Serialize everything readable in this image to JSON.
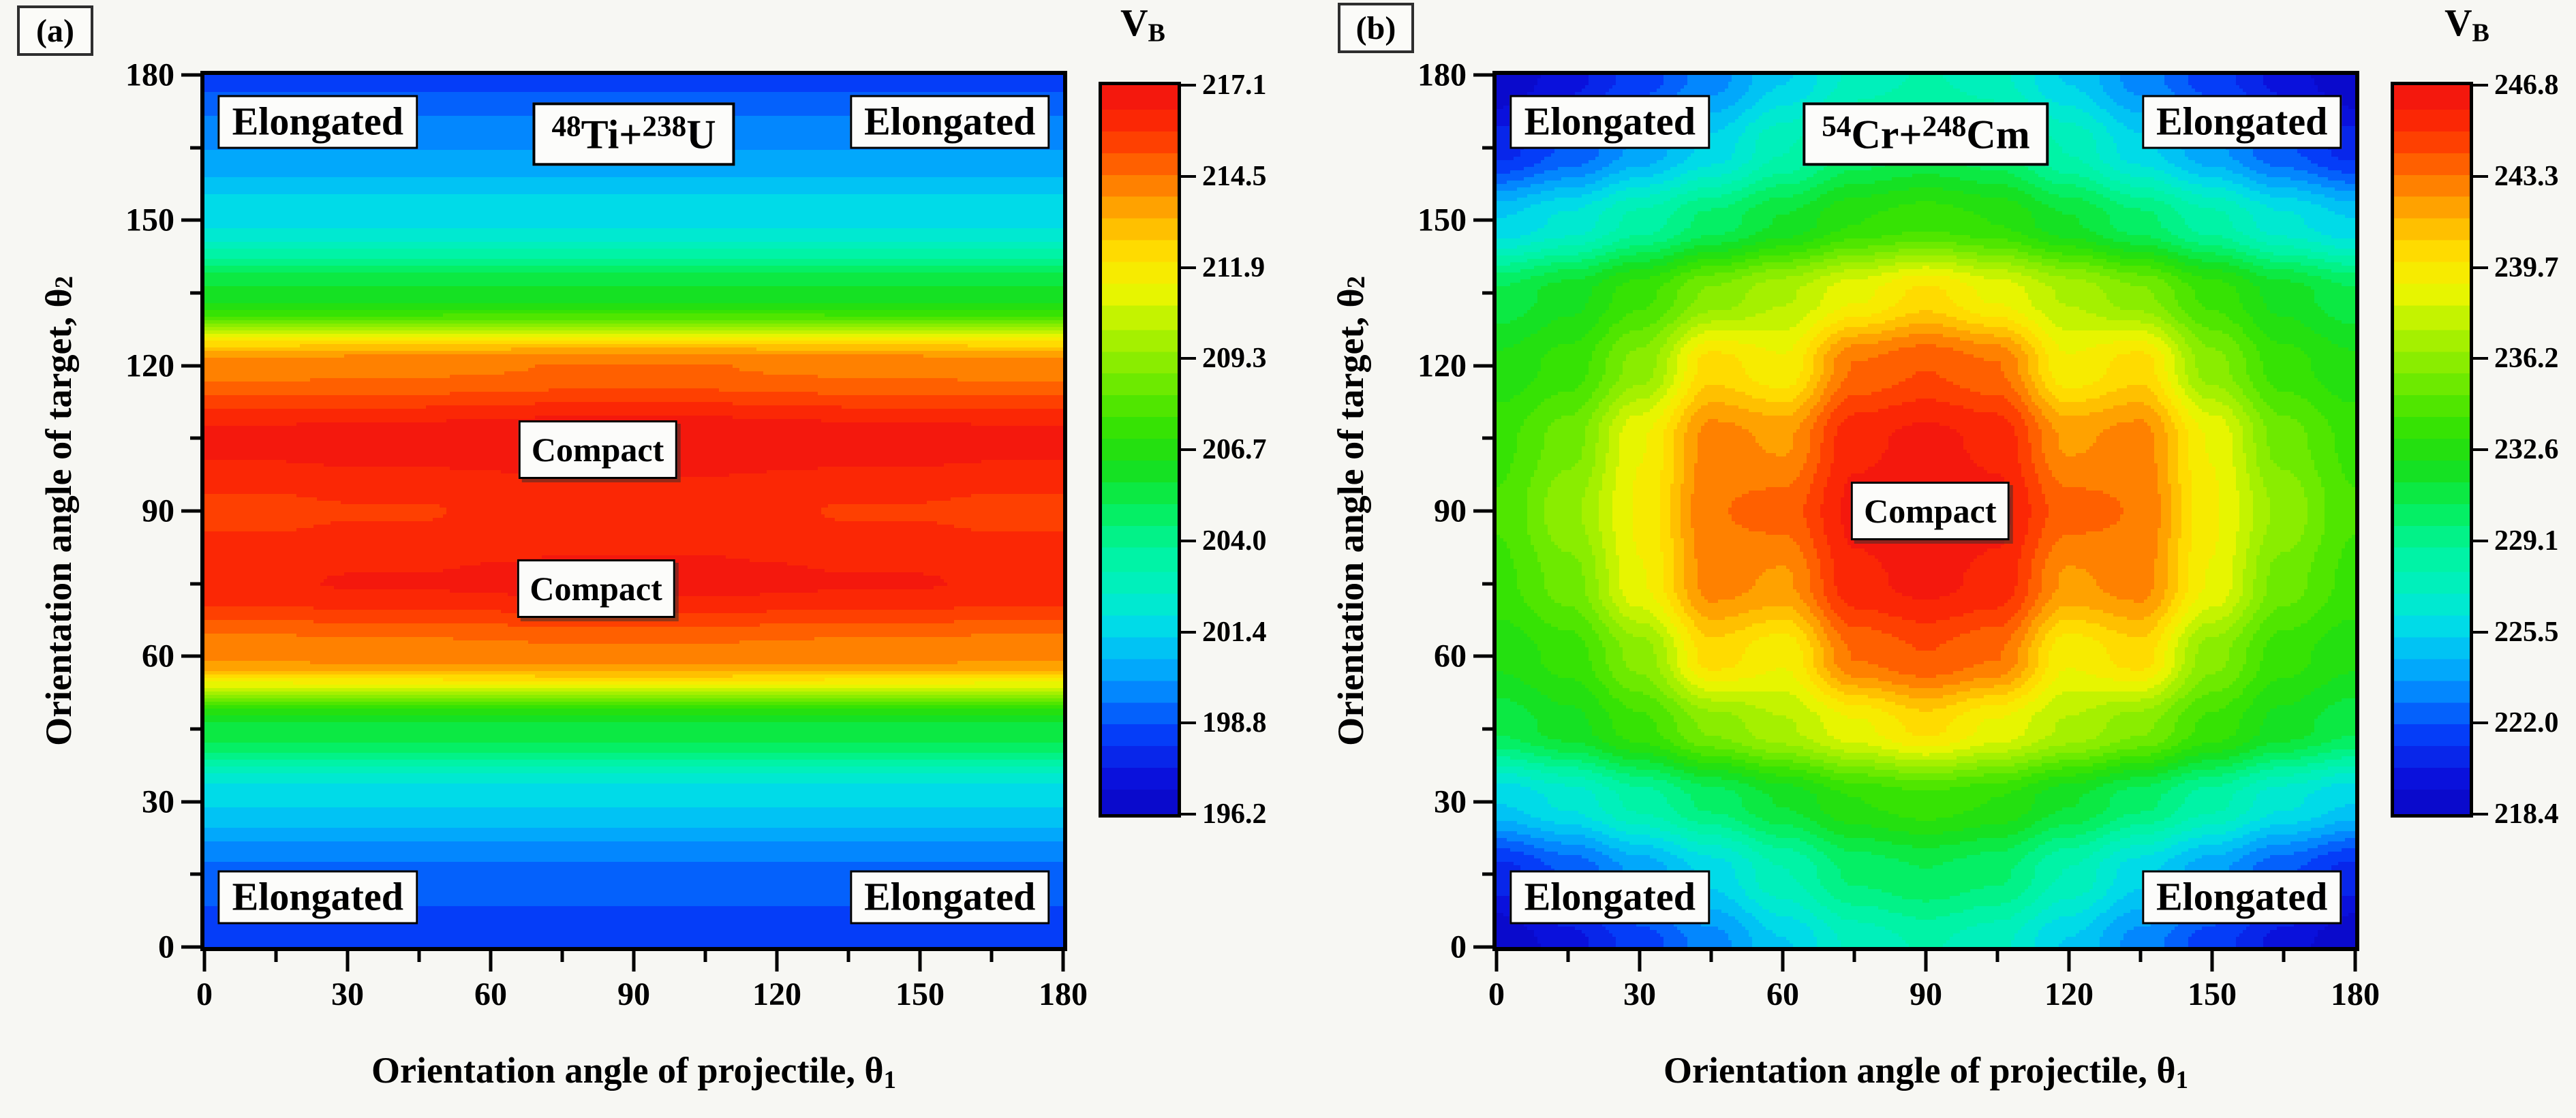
{
  "figure_background": "#f7f7f3",
  "palette": [
    [
      0.0,
      "#0A06C4"
    ],
    [
      0.05,
      "#0A12DE"
    ],
    [
      0.11,
      "#0540FA"
    ],
    [
      0.18,
      "#0298FF"
    ],
    [
      0.25,
      "#00D8EE"
    ],
    [
      0.3,
      "#00EEC8"
    ],
    [
      0.36,
      "#00F49E"
    ],
    [
      0.42,
      "#06EE58"
    ],
    [
      0.48,
      "#18DE18"
    ],
    [
      0.54,
      "#3CE400"
    ],
    [
      0.61,
      "#80EC00"
    ],
    [
      0.67,
      "#B6F200"
    ],
    [
      0.72,
      "#F0F600"
    ],
    [
      0.77,
      "#FFDE00"
    ],
    [
      0.82,
      "#FFB000"
    ],
    [
      0.87,
      "#FF7A00"
    ],
    [
      0.92,
      "#FF4400"
    ],
    [
      0.96,
      "#FA2206"
    ],
    [
      1.0,
      "#F01212"
    ]
  ],
  "quantize_levels": 33,
  "panels": [
    {
      "corner_label": "(a)",
      "reaction": {
        "parts": [
          {
            "sup": "48"
          },
          {
            "txt": "Ti+"
          },
          {
            "sup": "238"
          },
          {
            "txt": "U"
          }
        ]
      },
      "xlabel": {
        "text": "Orientation angle of projectile, θ",
        "sub": "1"
      },
      "ylabel": {
        "text": "Orientation angle of target, θ",
        "sub": "2"
      },
      "x_ticks": [
        0,
        30,
        60,
        90,
        120,
        150,
        180
      ],
      "y_ticks": [
        0,
        30,
        60,
        90,
        120,
        150,
        180
      ],
      "minor_ticks": [
        15,
        45,
        75,
        105,
        135,
        165
      ],
      "colorbar": {
        "title": "V",
        "title_sub": "B",
        "tick_labels": [
          "217.1",
          "214.5",
          "211.9",
          "209.3",
          "206.7",
          "204.0",
          "201.4",
          "198.8",
          "196.2"
        ]
      },
      "annotations": [
        {
          "kind": "elongated",
          "text": "Elongated",
          "fx": 0.132,
          "fy": 0.054
        },
        {
          "kind": "elongated",
          "text": "Elongated",
          "fx": 0.868,
          "fy": 0.054
        },
        {
          "kind": "elongated",
          "text": "Elongated",
          "fx": 0.132,
          "fy": 0.943
        },
        {
          "kind": "elongated",
          "text": "Elongated",
          "fx": 0.868,
          "fy": 0.943
        },
        {
          "kind": "compact",
          "text": "Compact",
          "fx": 0.458,
          "fy": 0.43
        },
        {
          "kind": "compact",
          "text": "Compact",
          "fx": 0.456,
          "fy": 0.589
        },
        {
          "kind": "reaction",
          "fx": 0.5,
          "fy": 0.068
        }
      ]
    },
    {
      "corner_label": "(b)",
      "reaction": {
        "parts": [
          {
            "sup": "54"
          },
          {
            "txt": "Cr+"
          },
          {
            "sup": "248"
          },
          {
            "txt": "Cm"
          }
        ]
      },
      "xlabel": {
        "text": "Orientation angle of projectile, θ",
        "sub": "1"
      },
      "ylabel": {
        "text": "Orientation angle of target, θ",
        "sub": "2"
      },
      "x_ticks": [
        0,
        30,
        60,
        90,
        120,
        150,
        180
      ],
      "y_ticks": [
        0,
        30,
        60,
        90,
        120,
        150,
        180
      ],
      "minor_ticks": [
        15,
        45,
        75,
        105,
        135,
        165
      ],
      "colorbar": {
        "title": "V",
        "title_sub": "B",
        "tick_labels": [
          "246.8",
          "243.3",
          "239.7",
          "236.2",
          "232.6",
          "229.1",
          "225.5",
          "222.0",
          "218.4"
        ]
      },
      "annotations": [
        {
          "kind": "elongated",
          "text": "Elongated",
          "fx": 0.132,
          "fy": 0.054
        },
        {
          "kind": "elongated",
          "text": "Elongated",
          "fx": 0.868,
          "fy": 0.054
        },
        {
          "kind": "elongated",
          "text": "Elongated",
          "fx": 0.132,
          "fy": 0.943
        },
        {
          "kind": "elongated",
          "text": "Elongated",
          "fx": 0.868,
          "fy": 0.943
        },
        {
          "kind": "compact",
          "text": "Compact",
          "fx": 0.505,
          "fy": 0.5
        },
        {
          "kind": "reaction",
          "fx": 0.5,
          "fy": 0.068
        }
      ]
    }
  ],
  "chart_data": [
    {
      "type": "heatmap",
      "title": "48Ti+238U",
      "xlabel": "Orientation angle of projectile, θ1",
      "ylabel": "Orientation angle of target, θ2",
      "zlabel": "V_B",
      "xlim": [
        0,
        180
      ],
      "ylim": [
        0,
        180
      ],
      "zmin": 196.2,
      "zmax": 217.1,
      "colorbar_ticks": [
        217.1,
        214.5,
        211.9,
        209.3,
        206.7,
        204.0,
        201.4,
        198.8,
        196.2
      ],
      "legend_position": "right-colorbar",
      "grid": "off",
      "x": [
        0,
        15,
        30,
        45,
        60,
        75,
        90,
        105,
        120,
        135,
        150,
        165,
        180
      ],
      "y": [
        0,
        15,
        30,
        45,
        60,
        75,
        90,
        105,
        120,
        135,
        150,
        165,
        180
      ],
      "values": [
        [
          198.2,
          198.2,
          198.2,
          198.2,
          198.2,
          198.2,
          198.2,
          198.2,
          198.2,
          198.2,
          198.2,
          198.2,
          198.2
        ],
        [
          199.2,
          199.2,
          199.2,
          199.2,
          199.2,
          199.2,
          199.2,
          199.2,
          199.2,
          199.2,
          199.2,
          199.2,
          199.2
        ],
        [
          201.3,
          201.3,
          201.3,
          201.3,
          201.3,
          201.3,
          201.3,
          201.3,
          201.3,
          201.3,
          201.3,
          201.3,
          201.3
        ],
        [
          205.6,
          205.6,
          205.6,
          205.6,
          205.6,
          205.6,
          205.6,
          205.6,
          205.6,
          205.6,
          205.6,
          205.6,
          205.6
        ],
        [
          214.1,
          214.1,
          214.2,
          214.2,
          214.3,
          214.4,
          214.4,
          214.4,
          214.3,
          214.2,
          214.2,
          214.1,
          214.1
        ],
        [
          216.4,
          216.4,
          216.5,
          216.5,
          216.6,
          216.7,
          216.7,
          216.7,
          216.6,
          216.5,
          216.5,
          216.4,
          216.4
        ],
        [
          215.7,
          215.7,
          215.8,
          215.8,
          215.9,
          216.0,
          216.0,
          216.0,
          215.9,
          215.8,
          215.8,
          215.7,
          215.7
        ],
        [
          216.7,
          216.7,
          216.8,
          216.8,
          216.9,
          217.0,
          217.1,
          217.0,
          216.9,
          216.8,
          216.8,
          216.7,
          216.7
        ],
        [
          214.3,
          214.3,
          214.4,
          214.4,
          214.5,
          214.6,
          214.6,
          214.6,
          214.5,
          214.4,
          214.4,
          214.3,
          214.3
        ],
        [
          205.8,
          205.8,
          205.8,
          205.8,
          205.8,
          205.8,
          205.8,
          205.8,
          205.8,
          205.8,
          205.8,
          205.8,
          205.8
        ],
        [
          201.8,
          201.8,
          201.8,
          201.8,
          201.8,
          201.8,
          201.8,
          201.8,
          201.8,
          201.8,
          201.8,
          201.8,
          201.8
        ],
        [
          200.0,
          200.0,
          200.0,
          200.0,
          200.0,
          200.0,
          200.0,
          200.0,
          200.0,
          200.0,
          200.0,
          200.0,
          200.0
        ],
        [
          198.6,
          198.6,
          198.6,
          198.6,
          198.6,
          198.6,
          198.6,
          198.6,
          198.6,
          198.6,
          198.6,
          198.6,
          198.6
        ]
      ]
    },
    {
      "type": "heatmap",
      "title": "54Cr+248Cm",
      "xlabel": "Orientation angle of projectile, θ1",
      "ylabel": "Orientation angle of target, θ2",
      "zlabel": "V_B",
      "xlim": [
        0,
        180
      ],
      "ylim": [
        0,
        180
      ],
      "zmin": 218.4,
      "zmax": 246.8,
      "colorbar_ticks": [
        246.8,
        243.3,
        239.7,
        236.2,
        232.6,
        229.1,
        225.5,
        222.0,
        218.4
      ],
      "legend_position": "right-colorbar",
      "grid": "off",
      "x": [
        0,
        15,
        30,
        45,
        60,
        75,
        90,
        105,
        120,
        135,
        150,
        165,
        180
      ],
      "y": [
        0,
        15,
        30,
        45,
        60,
        75,
        90,
        105,
        120,
        135,
        150,
        165,
        180
      ],
      "values": [
        [
          218.4,
          219.8,
          221.4,
          223.2,
          225.2,
          227.2,
          228.0,
          227.2,
          225.2,
          223.2,
          221.4,
          219.8,
          218.4
        ],
        [
          220.6,
          222.0,
          223.8,
          225.6,
          227.8,
          229.8,
          230.4,
          229.8,
          227.8,
          225.6,
          223.8,
          222.0,
          220.6
        ],
        [
          225.3,
          226.4,
          228.2,
          229.9,
          231.4,
          233.0,
          233.6,
          233.0,
          231.4,
          229.9,
          228.2,
          226.4,
          225.3
        ],
        [
          230.6,
          231.8,
          233.6,
          235.8,
          237.2,
          238.8,
          240.2,
          238.8,
          237.2,
          235.8,
          233.6,
          231.8,
          230.6
        ],
        [
          232.4,
          233.4,
          236.0,
          240.4,
          239.2,
          243.4,
          244.2,
          243.4,
          239.2,
          240.4,
          236.0,
          233.4,
          232.4
        ],
        [
          233.6,
          235.2,
          239.0,
          242.9,
          242.3,
          245.7,
          246.2,
          245.7,
          242.3,
          242.9,
          239.0,
          235.2,
          233.6
        ],
        [
          234.0,
          236.3,
          239.2,
          243.3,
          243.7,
          246.2,
          246.8,
          246.2,
          243.7,
          243.3,
          239.2,
          236.3,
          234.0
        ],
        [
          233.6,
          235.2,
          239.0,
          242.9,
          242.3,
          245.7,
          246.2,
          245.7,
          242.3,
          242.9,
          239.0,
          235.2,
          233.6
        ],
        [
          232.4,
          233.4,
          236.0,
          240.4,
          239.2,
          243.4,
          244.2,
          243.4,
          239.2,
          240.4,
          236.0,
          233.4,
          232.4
        ],
        [
          230.6,
          231.8,
          233.6,
          235.8,
          237.2,
          238.8,
          240.2,
          238.8,
          237.2,
          235.8,
          233.6,
          231.8,
          230.6
        ],
        [
          225.3,
          226.4,
          228.2,
          229.9,
          231.4,
          233.0,
          233.6,
          233.0,
          231.4,
          229.9,
          228.2,
          226.4,
          225.3
        ],
        [
          220.6,
          222.0,
          223.8,
          225.6,
          227.8,
          229.8,
          230.4,
          229.8,
          227.8,
          225.6,
          223.8,
          222.0,
          220.6
        ],
        [
          218.4,
          219.8,
          221.4,
          223.2,
          225.2,
          227.2,
          228.0,
          227.2,
          225.2,
          223.2,
          221.4,
          219.8,
          218.4
        ]
      ]
    }
  ]
}
